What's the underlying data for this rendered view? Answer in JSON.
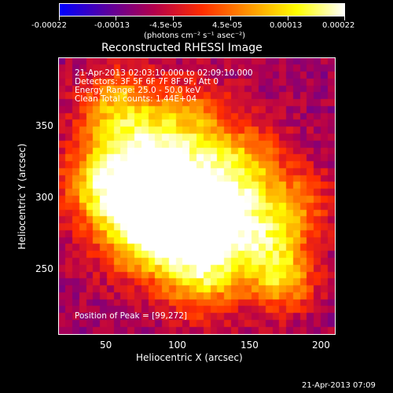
{
  "colorbar": {
    "tick_labels": [
      "-0.00022",
      "-0.00013",
      "-4.5e-05",
      "4.5e-05",
      "0.00013",
      "0.00022"
    ],
    "units": "(photons cm⁻² s⁻¹ asec⁻²)"
  },
  "chart_data": {
    "type": "heatmap",
    "title": "Reconstructed RHESSI Image",
    "xlabel": "Heliocentric X (arcsec)",
    "ylabel": "Heliocentric Y (arcsec)",
    "x_ticks": [
      50,
      100,
      150,
      200
    ],
    "y_ticks": [
      250,
      300,
      350
    ],
    "xlim": [
      18,
      212
    ],
    "ylim": [
      178,
      372
    ],
    "color_range": [
      -0.00022,
      0.00022
    ],
    "colormap": [
      "#0000ff",
      "#5a00a0",
      "#b4004b",
      "#ff2d00",
      "#ff9600",
      "#ffff00",
      "#ffffff"
    ],
    "peak_position": [
      99,
      272
    ],
    "info_lines": [
      "21-Apr-2013 02:03:10.000 to 02:09:10.000",
      "Detectors: 3F 5F 6F 7F 8F 9F, Att 0",
      "Energy Range: 25.0 - 50.0 keV",
      "Clean     Total counts: 1.44E+04"
    ],
    "peak_label": "Position of Peak = [99,272]"
  },
  "footer": {
    "timestamp": "21-Apr-2013 07:09"
  }
}
